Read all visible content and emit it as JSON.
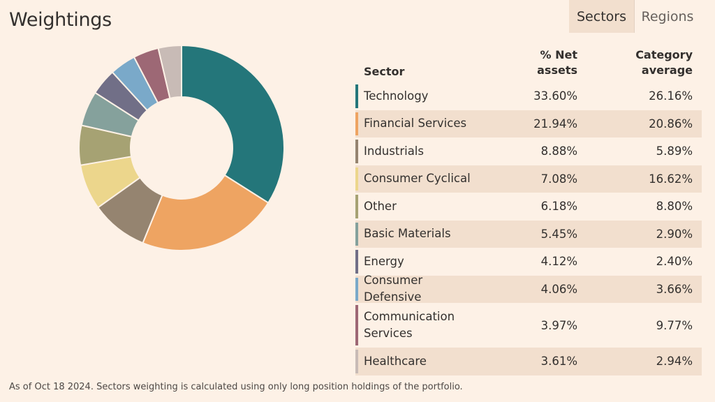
{
  "header": {
    "title": "Weightings",
    "tabs": [
      {
        "label": "Sectors",
        "active": true
      },
      {
        "label": "Regions",
        "active": false
      }
    ]
  },
  "table": {
    "headers": {
      "sector": "Sector",
      "net_line1": "% Net",
      "net_line2": "assets",
      "cat_line1": "Category",
      "cat_line2": "average"
    }
  },
  "chart_data": {
    "type": "pie",
    "style": "donut",
    "categories": [
      "Technology",
      "Financial Services",
      "Industrials",
      "Consumer Cyclical",
      "Other",
      "Basic Materials",
      "Energy",
      "Consumer Defensive",
      "Communication Services",
      "Healthcare"
    ],
    "series": [
      {
        "name": "% Net assets",
        "values": [
          33.6,
          21.94,
          8.88,
          7.08,
          6.18,
          5.45,
          4.12,
          4.06,
          3.97,
          3.61
        ],
        "labels": [
          "33.60%",
          "21.94%",
          "8.88%",
          "7.08%",
          "6.18%",
          "5.45%",
          "4.12%",
          "4.06%",
          "3.97%",
          "3.61%"
        ]
      },
      {
        "name": "Category average",
        "values": [
          26.16,
          20.86,
          5.89,
          16.62,
          8.8,
          2.9,
          2.4,
          3.66,
          9.77,
          2.94
        ],
        "labels": [
          "26.16%",
          "20.86%",
          "5.89%",
          "16.62%",
          "8.80%",
          "2.90%",
          "2.40%",
          "3.66%",
          "9.77%",
          "2.94%"
        ]
      }
    ],
    "display_names": [
      [
        "Technology"
      ],
      [
        "Financial Services"
      ],
      [
        "Industrials"
      ],
      [
        "Consumer Cyclical"
      ],
      [
        "Other"
      ],
      [
        "Basic Materials"
      ],
      [
        "Energy"
      ],
      [
        "Consumer Defensive"
      ],
      [
        "Communication",
        "Services"
      ],
      [
        "Healthcare"
      ]
    ],
    "colors": [
      "#24767a",
      "#eea462",
      "#958470",
      "#ecd68c",
      "#a6a273",
      "#85a19c",
      "#716f87",
      "#7aa9c9",
      "#9d6875",
      "#c8bbb6"
    ],
    "title": "Weightings"
  },
  "footnote": "As of Oct 18 2024. Sectors weighting is calculated using only long position holdings of the portfolio."
}
